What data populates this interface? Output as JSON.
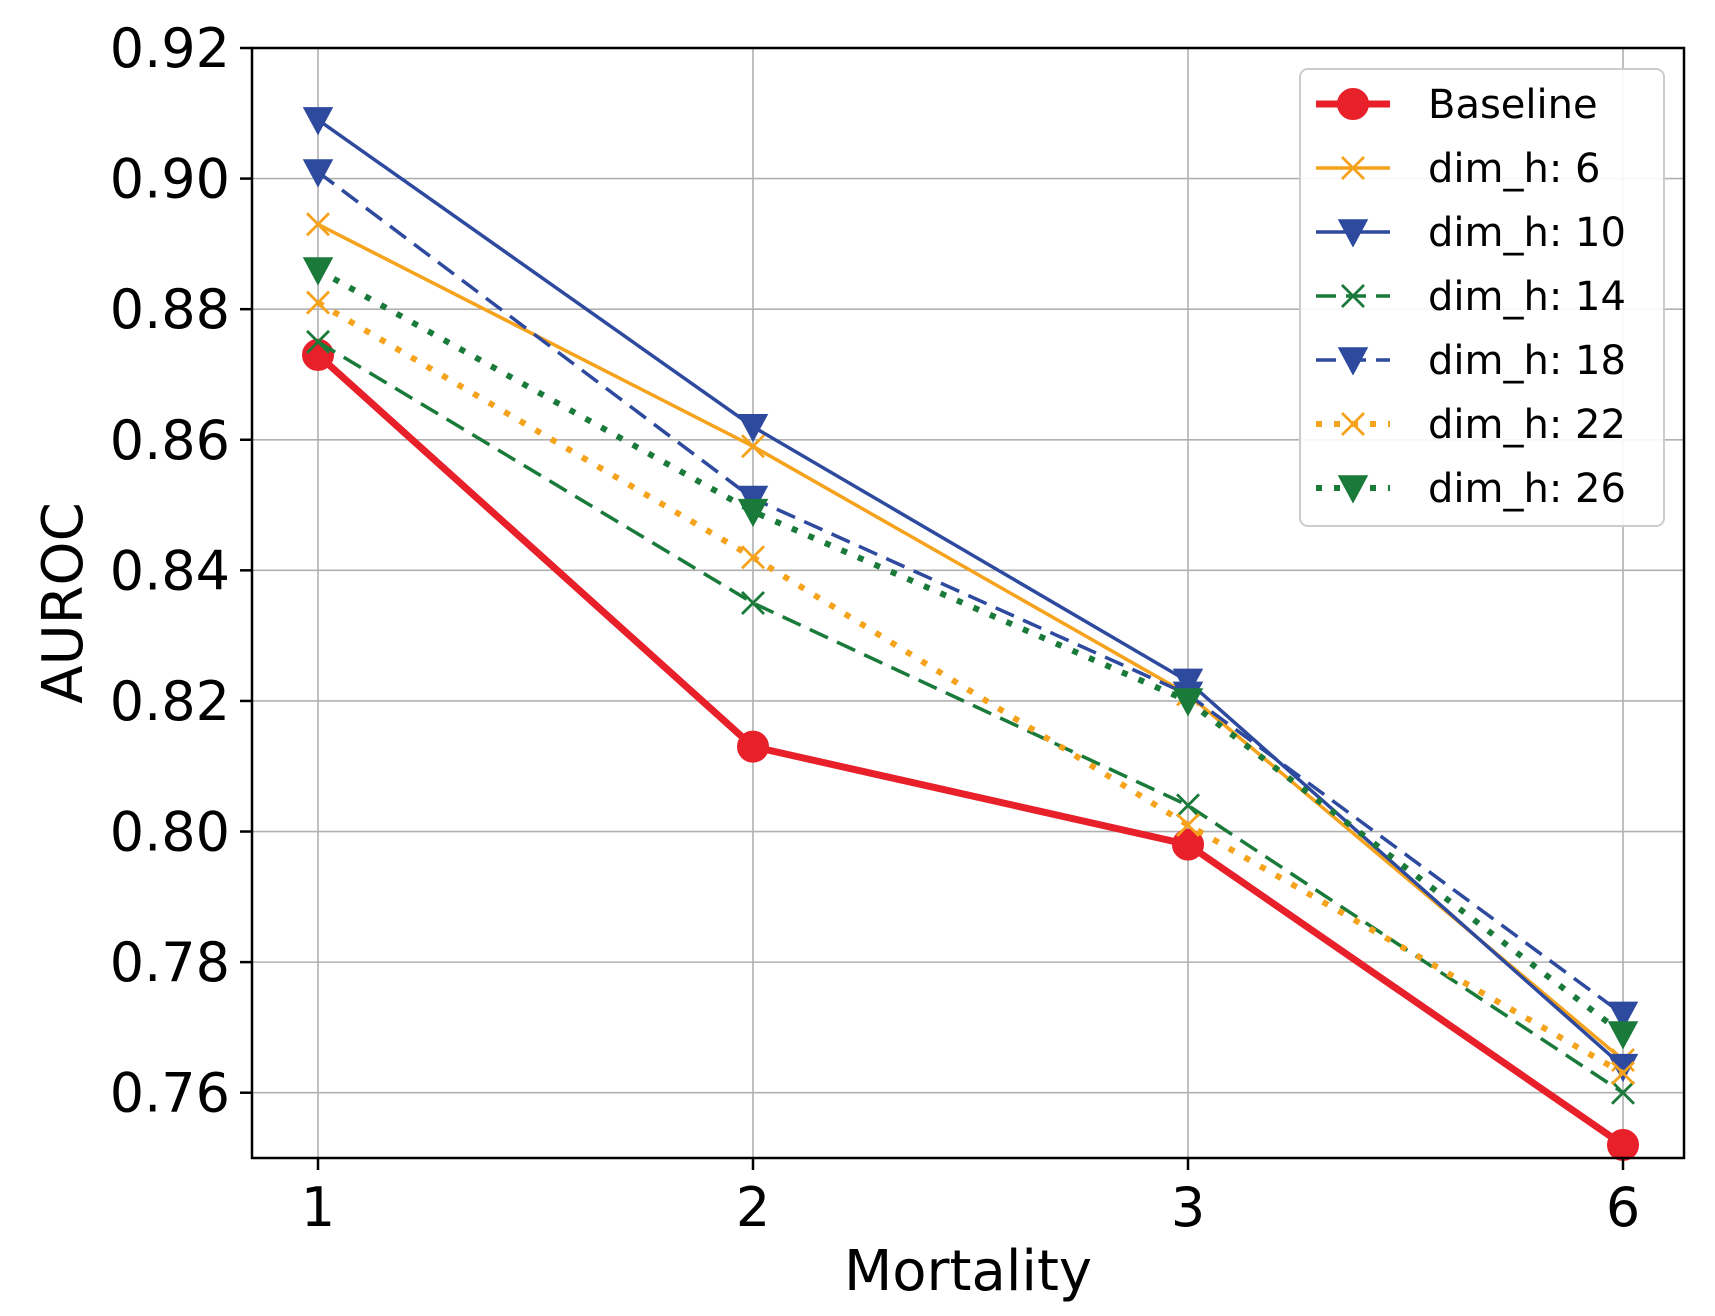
{
  "chart_data": {
    "type": "line",
    "title": "",
    "xlabel": "Mortality",
    "ylabel": "AUROC",
    "categories": [
      "1",
      "2",
      "3",
      "6"
    ],
    "ylim": [
      0.75,
      0.92
    ],
    "yticks": [
      0.76,
      0.78,
      0.8,
      0.82,
      0.84,
      0.86,
      0.88,
      0.9,
      0.92
    ],
    "ytick_labels": [
      "0.76",
      "0.78",
      "0.80",
      "0.82",
      "0.84",
      "0.86",
      "0.88",
      "0.90",
      "0.92"
    ],
    "grid": true,
    "legend_position": "top-right",
    "series": [
      {
        "name": "Baseline",
        "values": [
          0.873,
          0.813,
          0.798,
          0.752
        ],
        "color": "#e8202a",
        "dash": "solid",
        "marker": "circle",
        "weight": "bold"
      },
      {
        "name": "dim_h: 6",
        "values": [
          0.893,
          0.859,
          0.821,
          0.765
        ],
        "color": "#f5a21c",
        "dash": "solid",
        "marker": "x",
        "weight": "normal"
      },
      {
        "name": "dim_h: 10",
        "values": [
          0.909,
          0.862,
          0.823,
          0.764
        ],
        "color": "#2e4a9e",
        "dash": "solid",
        "marker": "triangle-down",
        "weight": "normal"
      },
      {
        "name": "dim_h: 14",
        "values": [
          0.875,
          0.835,
          0.804,
          0.76
        ],
        "color": "#1a7a3a",
        "dash": "dashed",
        "marker": "x",
        "weight": "normal"
      },
      {
        "name": "dim_h: 18",
        "values": [
          0.901,
          0.851,
          0.821,
          0.772
        ],
        "color": "#2e4a9e",
        "dash": "dashed",
        "marker": "triangle-down",
        "weight": "normal"
      },
      {
        "name": "dim_h: 22",
        "values": [
          0.881,
          0.842,
          0.801,
          0.763
        ],
        "color": "#f5a21c",
        "dash": "dotted",
        "marker": "x",
        "weight": "normal"
      },
      {
        "name": "dim_h: 26",
        "values": [
          0.886,
          0.849,
          0.82,
          0.769
        ],
        "color": "#1a7a3a",
        "dash": "dotted",
        "marker": "triangle-down",
        "weight": "normal"
      }
    ]
  }
}
